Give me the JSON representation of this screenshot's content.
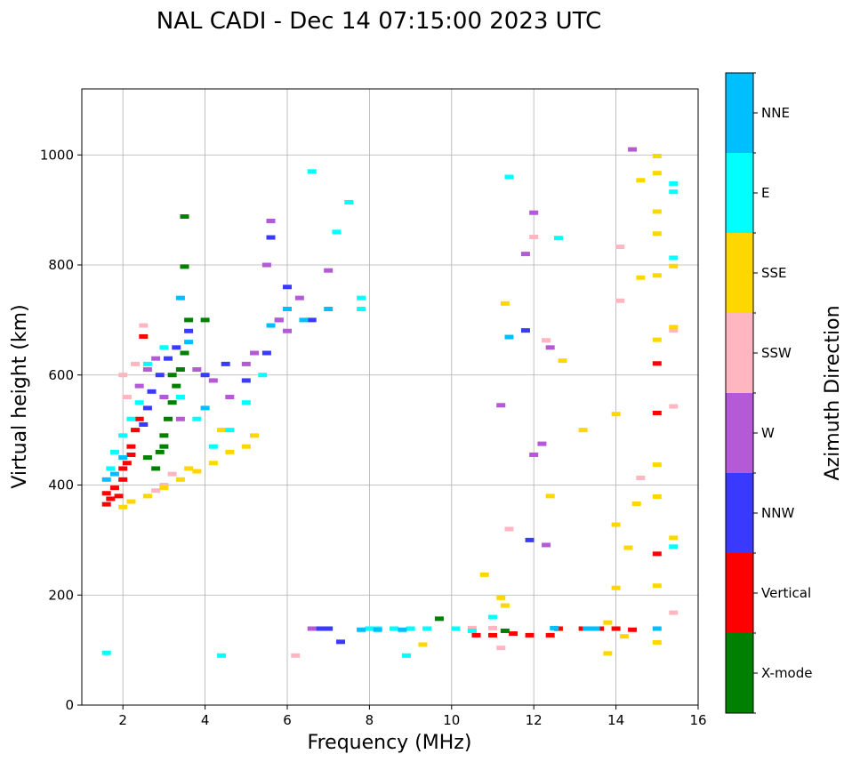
{
  "chart_data": {
    "type": "scatter",
    "title": "NAL CADI - Dec 14 07:15:00 2023 UTC",
    "xlabel": "Frequency (MHz)",
    "ylabel": "Virtual height (km)",
    "xlim": [
      1,
      16
    ],
    "ylim": [
      0,
      1120
    ],
    "xticks": [
      2,
      4,
      6,
      8,
      10,
      12,
      14,
      16
    ],
    "yticks": [
      0,
      200,
      400,
      600,
      800,
      1000
    ],
    "grid": true,
    "colorbar": {
      "label": "Azimuth Direction",
      "position": "right",
      "categories": [
        {
          "name": "X-mode",
          "color": "#008000"
        },
        {
          "name": "Vertical",
          "color": "#ff0000"
        },
        {
          "name": "NNW",
          "color": "#3a3aff"
        },
        {
          "name": "W",
          "color": "#b45ad6"
        },
        {
          "name": "SSW",
          "color": "#ffb6c1"
        },
        {
          "name": "SSE",
          "color": "#ffd700"
        },
        {
          "name": "E",
          "color": "#00ffff"
        },
        {
          "name": "NNE",
          "color": "#00bfff"
        }
      ]
    },
    "series": [
      {
        "name": "Vertical",
        "points": [
          [
            1.6,
            365
          ],
          [
            1.6,
            385
          ],
          [
            1.7,
            375
          ],
          [
            1.8,
            395
          ],
          [
            1.9,
            380
          ],
          [
            2.0,
            410
          ],
          [
            2.1,
            440
          ],
          [
            2.2,
            470
          ],
          [
            2.3,
            500
          ],
          [
            2.4,
            520
          ],
          [
            2.0,
            430
          ],
          [
            2.2,
            455
          ],
          [
            10.6,
            127
          ],
          [
            11.0,
            127
          ],
          [
            11.5,
            130
          ],
          [
            11.9,
            127
          ],
          [
            12.4,
            127
          ],
          [
            12.6,
            139
          ],
          [
            13.2,
            139
          ],
          [
            13.6,
            139
          ],
          [
            14.0,
            139
          ],
          [
            14.4,
            137
          ],
          [
            15.0,
            275
          ],
          [
            15.0,
            531
          ],
          [
            15.0,
            621
          ],
          [
            2.5,
            670
          ]
        ]
      },
      {
        "name": "X-mode",
        "points": [
          [
            2.8,
            430
          ],
          [
            2.9,
            460
          ],
          [
            3.0,
            490
          ],
          [
            3.1,
            520
          ],
          [
            3.2,
            550
          ],
          [
            3.3,
            580
          ],
          [
            3.4,
            610
          ],
          [
            3.5,
            640
          ],
          [
            3.6,
            700
          ],
          [
            3.5,
            888
          ],
          [
            3.5,
            797
          ],
          [
            4.0,
            700
          ],
          [
            2.6,
            450
          ],
          [
            3.0,
            470
          ],
          [
            3.2,
            600
          ],
          [
            9.7,
            157
          ],
          [
            11.3,
            135
          ]
        ]
      },
      {
        "name": "NNW",
        "points": [
          [
            2.5,
            510
          ],
          [
            2.6,
            540
          ],
          [
            2.7,
            570
          ],
          [
            2.9,
            600
          ],
          [
            3.1,
            630
          ],
          [
            3.3,
            650
          ],
          [
            3.6,
            680
          ],
          [
            4.0,
            600
          ],
          [
            4.5,
            620
          ],
          [
            5.0,
            590
          ],
          [
            5.5,
            640
          ],
          [
            5.8,
            700
          ],
          [
            6.0,
            760
          ],
          [
            6.6,
            700
          ],
          [
            11.8,
            681
          ],
          [
            11.9,
            300
          ],
          [
            7.0,
            139
          ],
          [
            6.8,
            139
          ],
          [
            7.3,
            115
          ],
          [
            5.6,
            850
          ]
        ]
      },
      {
        "name": "W",
        "points": [
          [
            2.4,
            580
          ],
          [
            2.6,
            610
          ],
          [
            2.8,
            630
          ],
          [
            3.0,
            560
          ],
          [
            3.4,
            520
          ],
          [
            3.8,
            610
          ],
          [
            4.2,
            590
          ],
          [
            4.6,
            560
          ],
          [
            5.0,
            620
          ],
          [
            5.2,
            640
          ],
          [
            5.6,
            880
          ],
          [
            5.5,
            800
          ],
          [
            5.8,
            700
          ],
          [
            6.0,
            680
          ],
          [
            6.3,
            740
          ],
          [
            7.0,
            790
          ],
          [
            12.0,
            455
          ],
          [
            12.2,
            475
          ],
          [
            12.3,
            291
          ],
          [
            11.2,
            545
          ],
          [
            11.8,
            820
          ],
          [
            12.0,
            895
          ],
          [
            12.4,
            650
          ],
          [
            14.4,
            1010
          ],
          [
            6.6,
            139
          ]
        ]
      },
      {
        "name": "SSW",
        "points": [
          [
            2.0,
            600
          ],
          [
            2.1,
            560
          ],
          [
            2.3,
            620
          ],
          [
            2.5,
            690
          ],
          [
            2.8,
            390
          ],
          [
            3.0,
            400
          ],
          [
            3.2,
            420
          ],
          [
            11.2,
            104
          ],
          [
            11.0,
            140
          ],
          [
            10.5,
            140
          ],
          [
            14.1,
            735
          ],
          [
            14.1,
            833
          ],
          [
            15.4,
            543
          ],
          [
            15.4,
            681
          ],
          [
            15.4,
            168
          ],
          [
            14.6,
            413
          ],
          [
            12.3,
            663
          ],
          [
            11.4,
            320
          ],
          [
            6.2,
            90
          ],
          [
            12.0,
            851
          ]
        ]
      },
      {
        "name": "SSE",
        "points": [
          [
            2.0,
            360
          ],
          [
            2.2,
            370
          ],
          [
            2.6,
            380
          ],
          [
            3.0,
            395
          ],
          [
            3.4,
            410
          ],
          [
            3.8,
            425
          ],
          [
            4.2,
            440
          ],
          [
            4.6,
            460
          ],
          [
            5.0,
            470
          ],
          [
            5.2,
            490
          ],
          [
            4.4,
            500
          ],
          [
            3.6,
            430
          ],
          [
            8.6,
            139
          ],
          [
            9.3,
            110
          ],
          [
            10.8,
            237
          ],
          [
            11.2,
            195
          ],
          [
            11.3,
            181
          ],
          [
            12.7,
            626
          ],
          [
            13.2,
            500
          ],
          [
            14.0,
            213
          ],
          [
            14.0,
            328
          ],
          [
            14.0,
            529
          ],
          [
            14.3,
            286
          ],
          [
            14.5,
            366
          ],
          [
            14.6,
            777
          ],
          [
            14.6,
            954
          ],
          [
            15.0,
            114
          ],
          [
            15.0,
            217
          ],
          [
            15.0,
            379
          ],
          [
            15.0,
            437
          ],
          [
            15.0,
            664
          ],
          [
            15.0,
            781
          ],
          [
            15.0,
            857
          ],
          [
            15.0,
            897
          ],
          [
            15.0,
            967
          ],
          [
            15.0,
            998
          ],
          [
            15.4,
            304
          ],
          [
            15.4,
            687
          ],
          [
            15.4,
            798
          ],
          [
            13.8,
            150
          ],
          [
            13.8,
            94
          ],
          [
            14.2,
            125
          ],
          [
            12.4,
            380
          ],
          [
            11.3,
            730
          ]
        ]
      },
      {
        "name": "E",
        "points": [
          [
            1.6,
            95
          ],
          [
            1.7,
            430
          ],
          [
            1.8,
            460
          ],
          [
            2.0,
            490
          ],
          [
            2.2,
            520
          ],
          [
            2.4,
            550
          ],
          [
            2.6,
            620
          ],
          [
            3.0,
            650
          ],
          [
            3.4,
            560
          ],
          [
            3.8,
            520
          ],
          [
            4.2,
            470
          ],
          [
            4.6,
            500
          ],
          [
            5.0,
            550
          ],
          [
            5.4,
            600
          ],
          [
            7.2,
            860
          ],
          [
            7.5,
            914
          ],
          [
            7.8,
            740
          ],
          [
            7.8,
            720
          ],
          [
            8.0,
            139
          ],
          [
            8.2,
            139
          ],
          [
            8.6,
            139
          ],
          [
            8.9,
            90
          ],
          [
            9.0,
            139
          ],
          [
            9.4,
            139
          ],
          [
            10.1,
            139
          ],
          [
            10.5,
            135
          ],
          [
            11.0,
            160
          ],
          [
            12.6,
            849
          ],
          [
            15.4,
            288
          ],
          [
            15.4,
            813
          ],
          [
            15.4,
            933
          ],
          [
            15.4,
            948
          ],
          [
            11.4,
            960
          ],
          [
            6.6,
            970
          ],
          [
            4.4,
            90
          ]
        ]
      },
      {
        "name": "NNE",
        "points": [
          [
            1.6,
            410
          ],
          [
            1.8,
            420
          ],
          [
            2.0,
            450
          ],
          [
            3.4,
            740
          ],
          [
            3.6,
            660
          ],
          [
            4.0,
            540
          ],
          [
            5.6,
            690
          ],
          [
            6.0,
            720
          ],
          [
            6.4,
            700
          ],
          [
            7.0,
            720
          ],
          [
            11.4,
            669
          ],
          [
            7.8,
            137
          ],
          [
            8.2,
            137
          ],
          [
            8.8,
            137
          ],
          [
            12.5,
            140
          ],
          [
            13.3,
            139
          ],
          [
            13.5,
            139
          ],
          [
            15.0,
            139
          ]
        ]
      }
    ]
  }
}
